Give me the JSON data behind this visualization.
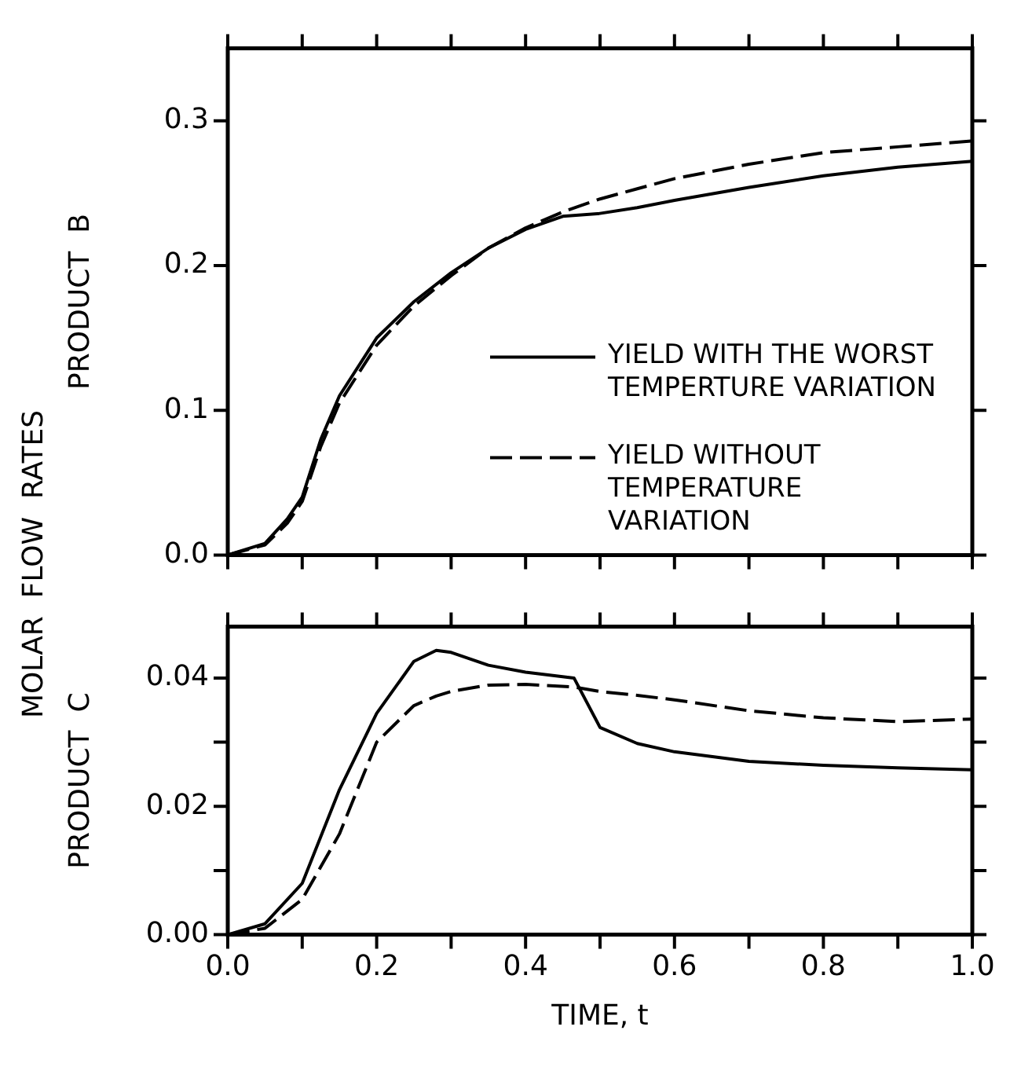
{
  "chart_data": [
    {
      "type": "line",
      "ylabel": "PRODUCT  B",
      "annotations": [
        "MOLAR  FLOW  RATES"
      ],
      "legend": "bottom right",
      "tick_labels": "y",
      "xlim": [
        0,
        1
      ],
      "ylim": [
        0,
        0.35
      ],
      "xticks": [
        {
          "value": 0,
          "label": null
        },
        {
          "value": 0.1,
          "label": null
        },
        {
          "value": 0.2,
          "label": null
        },
        {
          "value": 0.3,
          "label": null
        },
        {
          "value": 0.4,
          "label": null
        },
        {
          "value": 0.5,
          "label": null
        },
        {
          "value": 0.6,
          "label": null
        },
        {
          "value": 0.7,
          "label": null
        },
        {
          "value": 0.8,
          "label": null
        },
        {
          "value": 0.9,
          "label": null
        },
        {
          "value": 1,
          "label": null
        }
      ],
      "yticks": [
        {
          "value": 0,
          "label": "0.0"
        },
        0.1,
        0.2,
        0.3
      ],
      "x": [
        0,
        0.05,
        0.08,
        0.1,
        0.125,
        0.15,
        0.2,
        0.25,
        0.3,
        0.35,
        0.4,
        0.45,
        0.5,
        0.55,
        0.6,
        0.7,
        0.8,
        0.9,
        1.0
      ],
      "series": [
        {
          "name": "YIELD WITH THE WORST TEMPERTURE VARIATION",
          "color": "#000000",
          "line_style": "solid",
          "values": [
            0,
            0.008,
            0.025,
            0.04,
            0.08,
            0.11,
            0.15,
            0.175,
            0.195,
            0.212,
            0.225,
            0.234,
            0.236,
            0.24,
            0.245,
            0.254,
            0.262,
            0.268,
            0.272
          ]
        },
        {
          "name": "YIELD WITHOUT TEMPERATURE VARIATION",
          "color": "#000000",
          "line_style": "dashed",
          "values": [
            0,
            0.007,
            0.022,
            0.037,
            0.075,
            0.105,
            0.145,
            0.172,
            0.193,
            0.212,
            0.226,
            0.237,
            0.246,
            0.253,
            0.26,
            0.27,
            0.278,
            0.282,
            0.286
          ]
        }
      ]
    },
    {
      "type": "line",
      "ylabel": "PRODUCT  C",
      "xlabel": "TIME, t",
      "xlim": [
        0,
        1
      ],
      "ylim": [
        0,
        0.048
      ],
      "xticks": [
        {
          "value": 0,
          "label": "0.0"
        },
        {
          "value": 0.1,
          "label": null
        },
        0.2,
        {
          "value": 0.3,
          "label": null
        },
        0.4,
        {
          "value": 0.5,
          "label": null
        },
        0.6,
        {
          "value": 0.7,
          "label": null
        },
        0.8,
        {
          "value": 0.9,
          "label": null
        },
        {
          "value": 1,
          "label": "1.0"
        }
      ],
      "yticks": [
        {
          "value": 0,
          "label": "0.00"
        },
        {
          "value": 0.01,
          "label": null
        },
        0.02,
        {
          "value": 0.03,
          "label": null
        },
        0.04
      ],
      "x": [
        0,
        0.05,
        0.1,
        0.15,
        0.2,
        0.25,
        0.28,
        0.3,
        0.35,
        0.4,
        0.465,
        0.5,
        0.55,
        0.6,
        0.7,
        0.8,
        0.9,
        1.0
      ],
      "series": [
        {
          "color": "#000000",
          "line_style": "solid",
          "values": [
            0,
            0.0017,
            0.008,
            0.0226,
            0.0345,
            0.0426,
            0.0443,
            0.044,
            0.042,
            0.0409,
            0.04,
            0.0323,
            0.0298,
            0.0285,
            0.027,
            0.0264,
            0.026,
            0.0257
          ]
        },
        {
          "color": "#000000",
          "line_style": "dashed",
          "values": [
            0,
            0.001,
            0.0055,
            0.0157,
            0.03,
            0.0357,
            0.0372,
            0.0379,
            0.0389,
            0.039,
            0.0386,
            0.0379,
            0.0373,
            0.0366,
            0.0349,
            0.0338,
            0.0332,
            0.0336
          ]
        }
      ]
    }
  ]
}
